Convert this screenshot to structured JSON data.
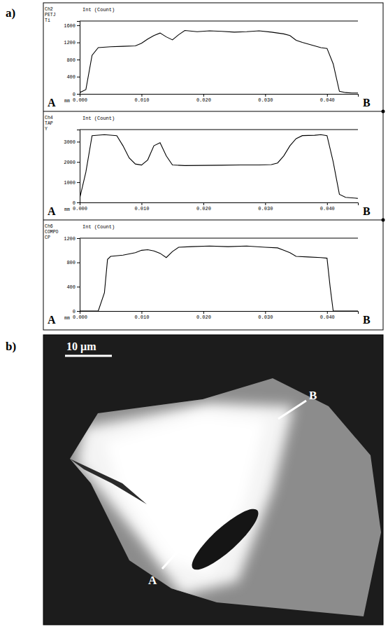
{
  "chart_data": [
    {
      "type": "line",
      "title": "Ch2 PETJ Ti",
      "ylabel": "Int (Count)",
      "xlabel": "mm",
      "color": "#000000",
      "grid": false,
      "annotations": [
        "A",
        "B"
      ],
      "xlim": [
        0,
        0.045
      ],
      "xticks": [
        {
          "value": 0,
          "label": "0.000"
        },
        {
          "value": 0.01,
          "label": "0.010"
        },
        {
          "value": 0.02,
          "label": "0.020"
        },
        {
          "value": 0.03,
          "label": "0.030"
        },
        {
          "value": 0.04,
          "label": "0.040"
        }
      ],
      "ylim": [
        0,
        1700
      ],
      "yticks": [
        0,
        400,
        800,
        1200,
        1600
      ],
      "x": [
        0,
        0.001,
        0.002,
        0.003,
        0.005,
        0.007,
        0.009,
        0.01,
        0.011,
        0.012,
        0.013,
        0.014,
        0.015,
        0.016,
        0.017,
        0.019,
        0.021,
        0.023,
        0.025,
        0.027,
        0.029,
        0.031,
        0.033,
        0.034,
        0.035,
        0.036,
        0.038,
        0.039,
        0.04,
        0.041,
        0.042,
        0.043,
        0.044,
        0.045
      ],
      "values": [
        30,
        100,
        900,
        1080,
        1100,
        1110,
        1120,
        1180,
        1280,
        1360,
        1420,
        1330,
        1260,
        1380,
        1480,
        1450,
        1470,
        1460,
        1440,
        1450,
        1470,
        1440,
        1400,
        1360,
        1250,
        1200,
        1120,
        1080,
        1060,
        700,
        60,
        30,
        20,
        20
      ]
    },
    {
      "type": "line",
      "title": "Ch4 TAP Y",
      "ylabel": "Int (Count)",
      "xlabel": "mm",
      "color": "#000000",
      "grid": false,
      "annotations": [
        "A",
        "B"
      ],
      "xlim": [
        0,
        0.045
      ],
      "xticks": [
        {
          "value": 0,
          "label": "0.000"
        },
        {
          "value": 0.01,
          "label": "0.010"
        },
        {
          "value": 0.02,
          "label": "0.020"
        },
        {
          "value": 0.03,
          "label": "0.030"
        },
        {
          "value": 0.04,
          "label": "0.040"
        }
      ],
      "ylim": [
        0,
        3600
      ],
      "yticks": [
        0,
        1000,
        2000,
        3000
      ],
      "x": [
        0,
        0.001,
        0.002,
        0.004,
        0.006,
        0.007,
        0.008,
        0.009,
        0.01,
        0.011,
        0.012,
        0.013,
        0.014,
        0.015,
        0.017,
        0.02,
        0.023,
        0.026,
        0.029,
        0.031,
        0.032,
        0.033,
        0.034,
        0.035,
        0.036,
        0.038,
        0.039,
        0.04,
        0.041,
        0.042,
        0.043,
        0.045
      ],
      "values": [
        200,
        1500,
        3300,
        3350,
        3300,
        2800,
        2200,
        1900,
        1850,
        2100,
        2800,
        2950,
        2300,
        1850,
        1820,
        1830,
        1840,
        1850,
        1850,
        1870,
        1950,
        2300,
        2800,
        3150,
        3300,
        3320,
        3350,
        3300,
        2000,
        400,
        250,
        200
      ]
    },
    {
      "type": "line",
      "title": "Ch6 COMPO CP",
      "ylabel": "Int (Count)",
      "xlabel": "mm",
      "color": "#000000",
      "grid": false,
      "annotations": [
        "A",
        "B"
      ],
      "xlim": [
        0,
        0.045
      ],
      "xticks": [
        {
          "value": 0,
          "label": "0.000"
        },
        {
          "value": 0.01,
          "label": "0.010"
        },
        {
          "value": 0.02,
          "label": "0.020"
        },
        {
          "value": 0.03,
          "label": "0.030"
        },
        {
          "value": 0.04,
          "label": "0.040"
        }
      ],
      "ylim": [
        0,
        1200
      ],
      "yticks": [
        0,
        400,
        800,
        1200
      ],
      "x": [
        0,
        0.003,
        0.004,
        0.0045,
        0.005,
        0.007,
        0.009,
        0.01,
        0.011,
        0.012,
        0.013,
        0.014,
        0.015,
        0.016,
        0.018,
        0.021,
        0.024,
        0.027,
        0.03,
        0.032,
        0.033,
        0.034,
        0.035,
        0.037,
        0.039,
        0.04,
        0.0405,
        0.041,
        0.045
      ],
      "values": [
        0,
        0,
        300,
        850,
        900,
        920,
        960,
        1000,
        1010,
        990,
        950,
        880,
        980,
        1050,
        1060,
        1070,
        1060,
        1070,
        1050,
        1040,
        1000,
        960,
        900,
        890,
        880,
        870,
        400,
        0,
        0
      ]
    }
  ],
  "panels": {
    "a": "a)",
    "b": "b)"
  },
  "image": {
    "scale_bar": "10 µm",
    "line_labels": [
      "A",
      "B"
    ]
  }
}
